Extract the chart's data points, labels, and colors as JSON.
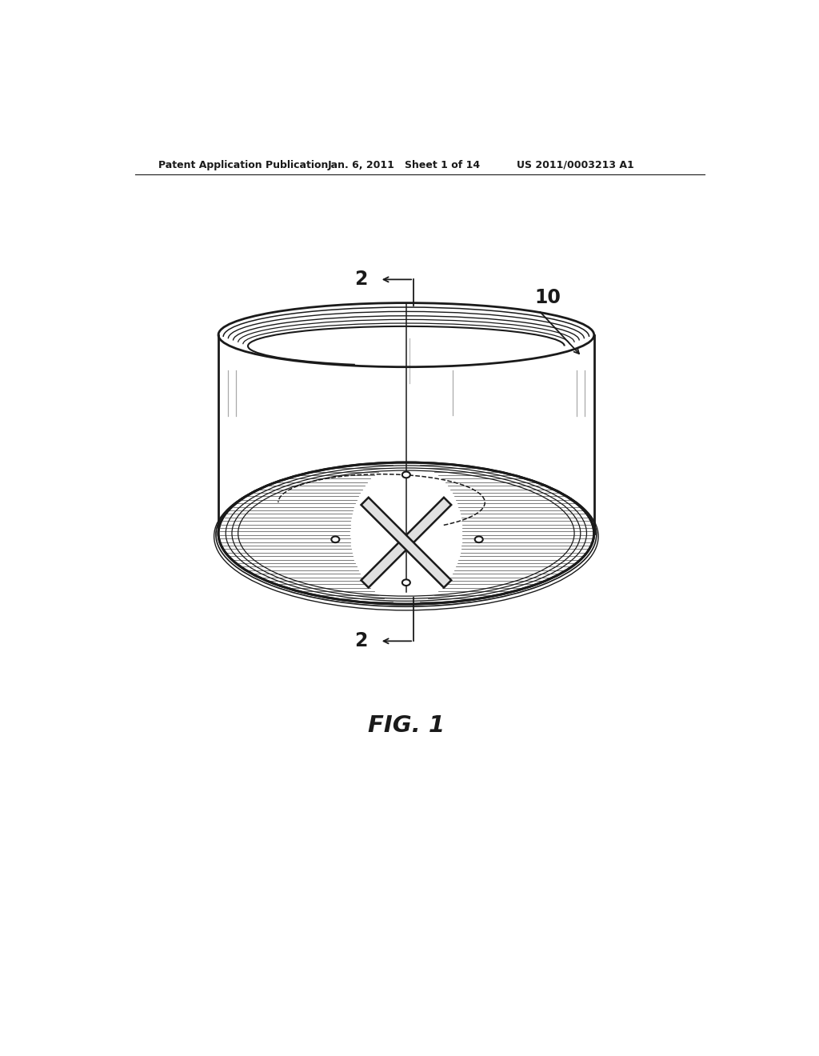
{
  "header_left": "Patent Application Publication",
  "header_mid": "Jan. 6, 2011   Sheet 1 of 14",
  "header_right": "US 2011/0003213 A1",
  "fig_caption": "FIG. 1",
  "label_2_top": "2",
  "label_2_bottom": "2",
  "label_10": "10",
  "bg_color": "#ffffff",
  "line_color": "#1a1a1a",
  "hatch_color": "#555555"
}
